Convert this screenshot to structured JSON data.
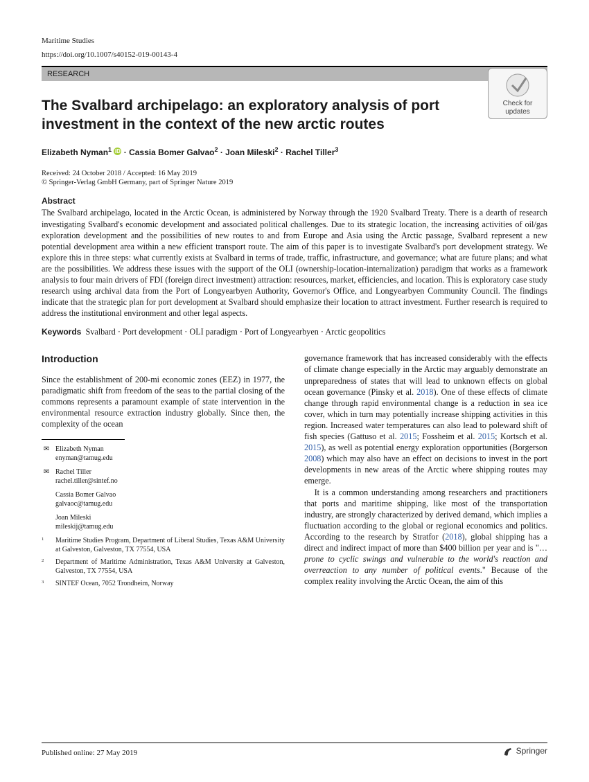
{
  "journal": "Maritime Studies",
  "doi": "https://doi.org/10.1007/s40152-019-00143-4",
  "sectionLabel": "RESEARCH",
  "checkUpdates": "Check for updates",
  "title": "The Svalbard archipelago: an exploratory analysis of port investment in the context of the new arctic routes",
  "authorLine": "Elizabeth Nyman¹ ⓘ · Cassia Bomer Galvao² · Joan Mileski² · Rachel Tiller³",
  "a1": {
    "name": "Elizabeth Nyman",
    "sup": "1"
  },
  "a2": {
    "name": "Cassia Bomer Galvao",
    "sup": "2"
  },
  "a3": {
    "name": "Joan Mileski",
    "sup": "2"
  },
  "a4": {
    "name": "Rachel Tiller",
    "sup": "3"
  },
  "dates": "Received: 24 October 2018 / Accepted: 16 May 2019",
  "copyright": "© Springer-Verlag GmbH Germany, part of Springer Nature 2019",
  "abstractHead": "Abstract",
  "abstract": "The Svalbard archipelago, located in the Arctic Ocean, is administered by Norway through the 1920 Svalbard Treaty. There is a dearth of research investigating Svalbard's economic development and associated political challenges. Due to its strategic location, the increasing activities of oil/gas exploration development and the possibilities of new routes to and from Europe and Asia using the Arctic passage, Svalbard represent a new potential development area within a new efficient transport route. The aim of this paper is to investigate Svalbard's port development strategy. We explore this in three steps: what currently exists at Svalbard in terms of trade, traffic, infrastructure, and governance; what are future plans; and what are the possibilities. We address these issues with the support of the OLI (ownership-location-internalization) paradigm that works as a framework analysis to four main drivers of FDI (foreign direct investment) attraction: resources, market, efficiencies, and location. This is exploratory case study research using archival data from the Port of Longyearbyen Authority, Governor's Office, and Longyearbyen Community Council. The findings indicate that the strategic plan for port development at Svalbard should emphasize their location to attract investment. Further research is required to address the institutional environment and other legal aspects.",
  "keywordsLabel": "Keywords",
  "keywords": "Svalbard · Port development · OLI paradigm · Port of Longyearbyen · Arctic geopolitics",
  "introHead": "Introduction",
  "col1p1": "Since the establishment of 200-mi economic zones (EEZ) in 1977, the paradigmatic shift from freedom of the seas to the partial closing of the commons represents a paramount example of state intervention in the environmental resource extraction industry globally. Since then, the complexity of the ocean",
  "col2p1a": "governance framework that has increased considerably with the effects of climate change especially in the Arctic may arguably demonstrate an unpreparedness of states that will lead to unknown effects on global ocean governance (Pinsky et al. ",
  "col2p1year1": "2018",
  "col2p1b": "). One of these effects of climate change through rapid environmental change is a reduction in sea ice cover, which in turn may potentially increase shipping activities in this region. Increased water temperatures can also lead to poleward shift of fish species (Gattuso et al. ",
  "col2p1year2": "2015",
  "col2p1c": "; Fossheim et al. ",
  "col2p1year3": "2015",
  "col2p1d": "; Kortsch et al. ",
  "col2p1year4": "2015",
  "col2p1e": "), as well as potential energy exploration opportunities (Borgerson ",
  "col2p1year5": "2008",
  "col2p1f": ") which may also have an effect on decisions to invest in the port developments in new areas of the Arctic where shipping routes may emerge.",
  "col2p2a": "It is a common understanding among researchers and practitioners that ports and maritime shipping, like most of the transportation industry, are strongly characterized by derived demand, which implies a fluctuation according to the global or regional economics and politics. According to the research by Stratfor (",
  "col2p2year1": "2018",
  "col2p2b": "), global shipping has a direct and indirect impact of more than $400 billion per year and is \"…",
  "col2p2quote": "prone to cyclic swings and vulnerable to the world's reaction and overreaction to any number of political events",
  "col2p2c": ".\" Because of the complex reality involving the Arctic Ocean, the aim of this",
  "contacts": [
    {
      "mark": "✉",
      "name": "Elizabeth Nyman",
      "email": "enyman@tamug.edu"
    },
    {
      "mark": "✉",
      "name": "Rachel Tiller",
      "email": "rachel.tiller@sintef.no"
    },
    {
      "mark": "",
      "name": "Cassia Bomer Galvao",
      "email": "galvaoc@tamug.edu"
    },
    {
      "mark": "",
      "name": "Joan Mileski",
      "email": "mileskij@tamug.edu"
    }
  ],
  "affils": [
    {
      "n": "1",
      "text": "Maritime Studies Program, Department of Liberal Studies, Texas A&M University at Galveston, Galveston, TX 77554, USA"
    },
    {
      "n": "2",
      "text": "Department of Maritime Administration, Texas A&M University at Galveston, Galveston, TX 77554, USA"
    },
    {
      "n": "3",
      "text": "SINTEF Ocean, 7052 Trondheim, Norway"
    }
  ],
  "pubOnline": "Published online: 27 May 2019",
  "publisher": "Springer"
}
